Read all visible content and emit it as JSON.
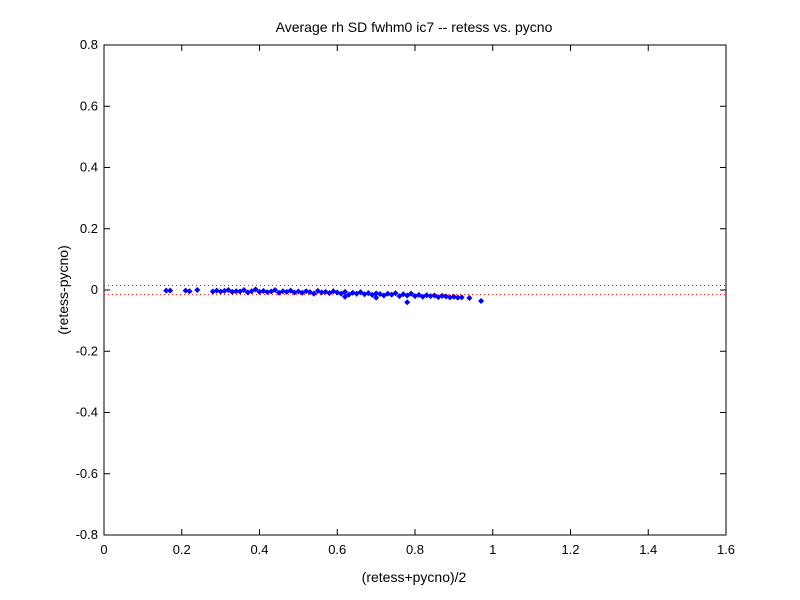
{
  "chart_data": {
    "type": "scatter",
    "title": "Average rh SD fwhm0 ic7 -- retess vs. pycno",
    "xlabel": "(retess+pycno)/2",
    "ylabel": "(retess-pycno)",
    "xlim": [
      0,
      1.6
    ],
    "ylim": [
      -0.8,
      0.8
    ],
    "xticks": [
      "0",
      "0.2",
      "0.4",
      "0.6",
      "0.8",
      "1",
      "1.2",
      "1.4",
      "1.6"
    ],
    "yticks": [
      "-0.8",
      "-0.6",
      "-0.4",
      "-0.2",
      "0",
      "0.2",
      "0.4",
      "0.6",
      "0.8"
    ],
    "grid": false,
    "series_color": "#0000ff",
    "reference_lines": [
      {
        "y": 0.015,
        "style": "dotted",
        "color": "#ff0000"
      },
      {
        "y": -0.015,
        "style": "dotted",
        "color": "#ff0000"
      }
    ],
    "points": [
      [
        0.16,
        -0.002
      ],
      [
        0.17,
        -0.002
      ],
      [
        0.21,
        -0.002
      ],
      [
        0.22,
        -0.004
      ],
      [
        0.24,
        0.0
      ],
      [
        0.28,
        -0.005
      ],
      [
        0.29,
        -0.002
      ],
      [
        0.3,
        -0.005
      ],
      [
        0.31,
        -0.003
      ],
      [
        0.32,
        0.0
      ],
      [
        0.33,
        -0.006
      ],
      [
        0.34,
        -0.004
      ],
      [
        0.35,
        -0.005
      ],
      [
        0.36,
        0.0
      ],
      [
        0.37,
        -0.008
      ],
      [
        0.38,
        -0.004
      ],
      [
        0.39,
        0.002
      ],
      [
        0.4,
        -0.006
      ],
      [
        0.41,
        -0.003
      ],
      [
        0.42,
        -0.007
      ],
      [
        0.43,
        -0.005
      ],
      [
        0.44,
        0.0
      ],
      [
        0.45,
        -0.009
      ],
      [
        0.46,
        -0.004
      ],
      [
        0.47,
        -0.006
      ],
      [
        0.48,
        -0.002
      ],
      [
        0.49,
        -0.008
      ],
      [
        0.5,
        -0.005
      ],
      [
        0.51,
        -0.009
      ],
      [
        0.52,
        -0.004
      ],
      [
        0.53,
        -0.007
      ],
      [
        0.54,
        -0.012
      ],
      [
        0.55,
        -0.003
      ],
      [
        0.56,
        -0.008
      ],
      [
        0.57,
        -0.006
      ],
      [
        0.58,
        -0.01
      ],
      [
        0.59,
        -0.004
      ],
      [
        0.6,
        -0.008
      ],
      [
        0.61,
        -0.012
      ],
      [
        0.62,
        -0.006
      ],
      [
        0.63,
        -0.015
      ],
      [
        0.64,
        -0.009
      ],
      [
        0.65,
        -0.012
      ],
      [
        0.66,
        -0.007
      ],
      [
        0.67,
        -0.014
      ],
      [
        0.68,
        -0.01
      ],
      [
        0.69,
        -0.016
      ],
      [
        0.7,
        -0.011
      ],
      [
        0.71,
        -0.013
      ],
      [
        0.72,
        -0.018
      ],
      [
        0.73,
        -0.012
      ],
      [
        0.74,
        -0.015
      ],
      [
        0.75,
        -0.01
      ],
      [
        0.76,
        -0.02
      ],
      [
        0.77,
        -0.014
      ],
      [
        0.78,
        -0.018
      ],
      [
        0.79,
        -0.012
      ],
      [
        0.8,
        -0.02
      ],
      [
        0.81,
        -0.016
      ],
      [
        0.82,
        -0.022
      ],
      [
        0.83,
        -0.017
      ],
      [
        0.84,
        -0.02
      ],
      [
        0.85,
        -0.018
      ],
      [
        0.86,
        -0.023
      ],
      [
        0.87,
        -0.019
      ],
      [
        0.88,
        -0.021
      ],
      [
        0.89,
        -0.024
      ],
      [
        0.9,
        -0.022
      ],
      [
        0.91,
        -0.025
      ],
      [
        0.92,
        -0.024
      ],
      [
        0.94,
        -0.026
      ],
      [
        0.97,
        -0.036
      ],
      [
        0.78,
        -0.04
      ],
      [
        0.62,
        -0.022
      ],
      [
        0.7,
        -0.025
      ]
    ]
  }
}
